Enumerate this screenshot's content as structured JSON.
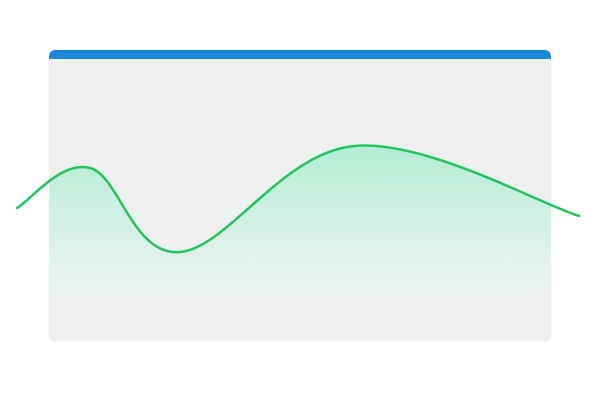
{
  "colors": {
    "accent_bar": "#1a88d8",
    "card_background": "#eef0f0",
    "line": "#22c55e",
    "fill_top": "#a7ecd0",
    "fill_bottom": "#e8f4ee"
  },
  "chart_data": {
    "type": "area",
    "title": "",
    "xlabel": "",
    "ylabel": "",
    "grid": false,
    "legend": "none",
    "x": [
      0,
      0.13,
      0.29,
      0.6,
      1.0
    ],
    "ylim": [
      0,
      1
    ],
    "series": [
      {
        "values": [
          0.42,
          0.62,
          0.2,
          0.73,
          0.38
        ]
      }
    ]
  }
}
